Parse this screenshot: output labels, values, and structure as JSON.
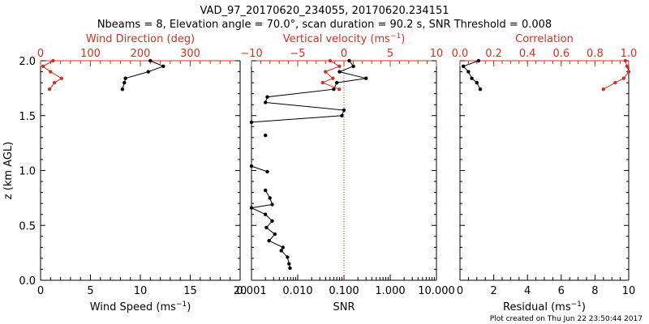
{
  "title_line1": "VAD_97_20170620_234055, 20170620.234151",
  "title_line2": "Nbeams = 8, Elevation angle = 70.0°, scan duration = 90.2 s, SNR Threshold = 0.008",
  "footer": "Plot created on Thu Jun 22 23:50:44 2017",
  "colors": {
    "axis": "#000000",
    "red": "#cc3322",
    "black": "#000000"
  },
  "chart_data": [
    {
      "type": "line",
      "panel": "wind",
      "ylabel": "z (km AGL)",
      "ylim": [
        0.0,
        2.0
      ],
      "yticks": [
        "0.0",
        "0.5",
        "1.0",
        "1.5",
        "2.0"
      ],
      "bottom_axis": {
        "label": "Wind Speed (ms",
        "sup": "−1",
        "tail": ")",
        "xlim": [
          0,
          20
        ],
        "ticks": [
          "0",
          "5",
          "10",
          "15",
          "20"
        ]
      },
      "top_axis": {
        "label": "Wind Direction (deg)",
        "xlim": [
          0,
          400
        ],
        "ticks": [
          "0",
          "100",
          "200",
          "300"
        ]
      },
      "series": [
        {
          "axis": "bottom",
          "color": "black",
          "z": [
            2.0,
            1.95,
            1.9,
            1.84,
            1.8,
            1.74
          ],
          "x": [
            11,
            12.3,
            10.8,
            8.5,
            8.4,
            8.2
          ]
        },
        {
          "axis": "top",
          "color": "red",
          "z": [
            2.0,
            1.95,
            1.9,
            1.84,
            1.8,
            1.74
          ],
          "x": [
            25,
            5,
            20,
            42,
            28,
            18
          ]
        }
      ]
    },
    {
      "type": "line",
      "panel": "snr",
      "ylim": [
        0.0,
        2.0
      ],
      "bottom_axis": {
        "label": "SNR",
        "xlim": [
          0.001,
          10
        ],
        "log": true,
        "ticks": [
          "0.001",
          "0.010",
          "0.100",
          "1.000",
          "10.000"
        ]
      },
      "top_axis": {
        "label": "Vertical velocity (ms",
        "sup": "−1",
        "tail": ")",
        "xlim": [
          -10,
          10
        ],
        "ticks": [
          "−10",
          "−5",
          "0",
          "5",
          "10"
        ]
      },
      "reference_line": {
        "axis": "top",
        "x": 0,
        "color": "red",
        "style": "dotted"
      },
      "series": [
        {
          "axis": "bottom",
          "color": "black",
          "z": [
            2.0,
            1.95,
            1.9,
            1.84,
            1.8,
            1.74,
            1.67,
            1.62,
            1.55,
            1.5,
            1.44,
            null,
            1.32,
            null,
            1.04,
            0.99,
            null,
            0.82,
            0.75,
            0.69,
            0.66,
            0.6,
            0.54,
            0.48,
            0.42,
            0.36,
            0.3,
            0.27,
            0.21,
            0.15,
            0.11
          ],
          "x": [
            0.13,
            0.16,
            0.08,
            0.3,
            0.07,
            0.06,
            0.0022,
            0.002,
            0.1,
            0.09,
            0.001,
            null,
            0.002,
            null,
            0.001,
            0.0022,
            null,
            0.002,
            0.0025,
            0.0028,
            0.001,
            0.002,
            0.0028,
            0.0021,
            0.0032,
            0.0024,
            0.0048,
            0.0044,
            0.006,
            0.0065,
            0.0068
          ]
        },
        {
          "axis": "top",
          "color": "red",
          "z": [
            2.0,
            1.95,
            1.9,
            1.84,
            1.8,
            1.74
          ],
          "x": [
            -1.5,
            -0.5,
            -2.0,
            -1.2,
            -2.3,
            -0.5
          ]
        }
      ]
    },
    {
      "type": "line",
      "panel": "correlation",
      "ylim": [
        0.0,
        2.0
      ],
      "bottom_axis": {
        "label": "Residual (ms",
        "sup": "−1",
        "tail": ")",
        "xlim": [
          0,
          10
        ],
        "ticks": [
          "0",
          "2",
          "4",
          "6",
          "8",
          "10"
        ]
      },
      "top_axis": {
        "label": "Correlation",
        "xlim": [
          0,
          1
        ],
        "ticks": [
          "0.0",
          "0.2",
          "0.4",
          "0.6",
          "0.8",
          "1.0"
        ]
      },
      "series": [
        {
          "axis": "bottom",
          "color": "black",
          "z": [
            2.0,
            1.95,
            1.9,
            1.84,
            1.8,
            1.74
          ],
          "x": [
            1.1,
            0.2,
            0.5,
            0.7,
            1.0,
            1.2
          ]
        },
        {
          "axis": "top",
          "color": "red",
          "z": [
            2.0,
            1.95,
            1.9,
            1.84,
            1.8,
            1.74
          ],
          "x": [
            0.98,
            0.99,
            1.0,
            0.97,
            0.92,
            0.85
          ]
        }
      ]
    }
  ]
}
